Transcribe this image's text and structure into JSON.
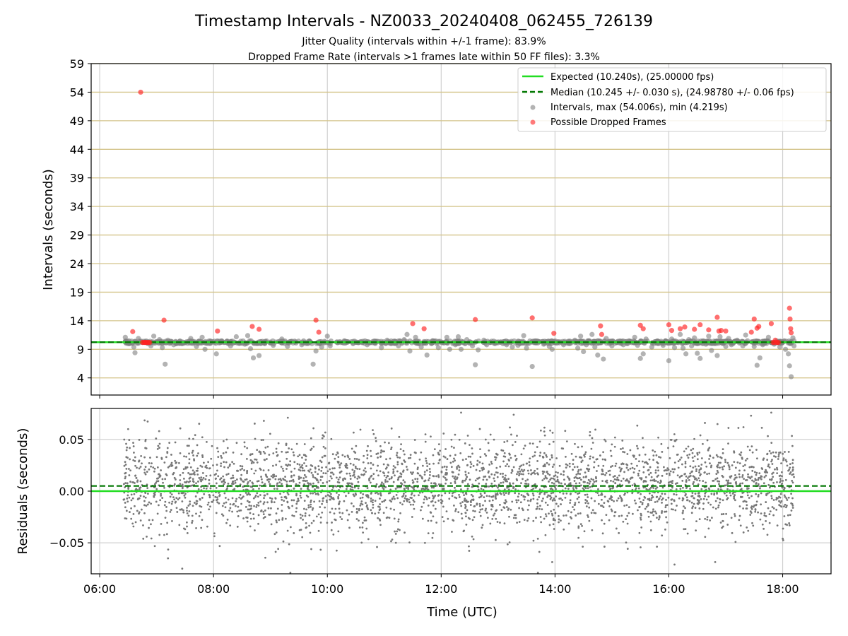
{
  "chart_data": [
    {
      "type": "scatter",
      "title": "Timestamp Intervals - NZ0033_20240408_062455_726139",
      "subtitle_lines": [
        "Jitter Quality (intervals within +/-1 frame): 83.9%",
        "Dropped Frame Rate (intervals >1 frames late within 50 FF files): 3.3%"
      ],
      "xlabel": "",
      "ylabel": "Intervals (seconds)",
      "xlim": [
        5.85,
        18.85
      ],
      "ylim": [
        1.0,
        59.0
      ],
      "yticks": [
        4,
        9,
        14,
        19,
        24,
        29,
        34,
        39,
        44,
        49,
        54,
        59
      ],
      "ytick_labels": [
        "4",
        "9",
        "14",
        "19",
        "24",
        "29",
        "34",
        "39",
        "44",
        "49",
        "54",
        "59"
      ],
      "x_gridlines": [
        6,
        8,
        10,
        12,
        14,
        16,
        18
      ],
      "grid": true,
      "legend_position": "upper-right",
      "lines": [
        {
          "name": "Expected (10.240s), (25.00000 fps)",
          "value": 10.24,
          "color": "#22dd22",
          "style": "solid"
        },
        {
          "name": "Median (10.245 +/- 0.030 s), (24.98780 +/- 0.06 fps)",
          "value": 10.245,
          "color": "#007700",
          "style": "dashed"
        }
      ],
      "series": [
        {
          "name": "Intervals, max (54.006s), min (4.219s)",
          "color": "#808080",
          "points": [
            [
              6.45,
              11.1
            ],
            [
              6.52,
              10.0
            ],
            [
              6.6,
              9.4
            ],
            [
              6.62,
              8.4
            ],
            [
              6.68,
              10.9
            ],
            [
              6.75,
              10.2
            ],
            [
              6.9,
              9.6
            ],
            [
              6.95,
              11.3
            ],
            [
              7.0,
              10.3
            ],
            [
              7.05,
              10.7
            ],
            [
              7.1,
              9.3
            ],
            [
              7.15,
              6.4
            ],
            [
              7.2,
              10.6
            ],
            [
              7.3,
              9.8
            ],
            [
              7.45,
              10.3
            ],
            [
              7.6,
              10.9
            ],
            [
              7.7,
              9.5
            ],
            [
              7.8,
              11.1
            ],
            [
              7.85,
              9.0
            ],
            [
              7.95,
              10.4
            ],
            [
              8.05,
              8.2
            ],
            [
              8.15,
              10.3
            ],
            [
              8.3,
              9.6
            ],
            [
              8.4,
              11.2
            ],
            [
              8.55,
              9.9
            ],
            [
              8.6,
              11.4
            ],
            [
              8.65,
              9.1
            ],
            [
              8.7,
              7.5
            ],
            [
              8.75,
              10.1
            ],
            [
              8.8,
              7.9
            ],
            [
              8.9,
              10.0
            ],
            [
              9.05,
              9.7
            ],
            [
              9.2,
              10.8
            ],
            [
              9.3,
              9.5
            ],
            [
              9.45,
              10.1
            ],
            [
              9.55,
              9.8
            ],
            [
              9.75,
              6.4
            ],
            [
              9.8,
              8.7
            ],
            [
              9.9,
              9.4
            ],
            [
              9.95,
              10.4
            ],
            [
              10.0,
              11.3
            ],
            [
              10.05,
              9.6
            ],
            [
              10.2,
              10.3
            ],
            [
              10.3,
              10.5
            ],
            [
              10.45,
              10.0
            ],
            [
              10.55,
              10.2
            ],
            [
              10.7,
              9.8
            ],
            [
              10.85,
              10.2
            ],
            [
              10.95,
              9.3
            ],
            [
              11.05,
              10.6
            ],
            [
              11.15,
              10.1
            ],
            [
              11.25,
              9.6
            ],
            [
              11.35,
              10.7
            ],
            [
              11.4,
              11.6
            ],
            [
              11.45,
              8.7
            ],
            [
              11.55,
              11.1
            ],
            [
              11.6,
              10.0
            ],
            [
              11.65,
              9.4
            ],
            [
              11.75,
              8.0
            ],
            [
              11.85,
              10.5
            ],
            [
              11.95,
              9.3
            ],
            [
              12.05,
              10.1
            ],
            [
              12.1,
              11.1
            ],
            [
              12.15,
              9.0
            ],
            [
              12.25,
              9.8
            ],
            [
              12.3,
              11.2
            ],
            [
              12.35,
              9.0
            ],
            [
              12.45,
              10.7
            ],
            [
              12.55,
              9.6
            ],
            [
              12.65,
              8.9
            ],
            [
              12.6,
              6.3
            ],
            [
              12.75,
              10.6
            ],
            [
              12.8,
              9.8
            ],
            [
              12.95,
              10.0
            ],
            [
              13.05,
              10.3
            ],
            [
              13.15,
              9.8
            ],
            [
              13.25,
              9.4
            ],
            [
              13.35,
              9.7
            ],
            [
              13.45,
              11.4
            ],
            [
              13.5,
              9.2
            ],
            [
              13.55,
              10.1
            ],
            [
              13.6,
              6.0
            ],
            [
              13.7,
              10.4
            ],
            [
              13.8,
              9.9
            ],
            [
              13.9,
              9.5
            ],
            [
              13.95,
              9.0
            ],
            [
              14.05,
              10.3
            ],
            [
              14.15,
              9.8
            ],
            [
              14.25,
              10.0
            ],
            [
              14.35,
              10.6
            ],
            [
              14.4,
              9.2
            ],
            [
              14.45,
              11.3
            ],
            [
              14.5,
              8.6
            ],
            [
              14.55,
              9.8
            ],
            [
              14.6,
              10.5
            ],
            [
              14.65,
              11.6
            ],
            [
              14.7,
              9.4
            ],
            [
              14.75,
              8.0
            ],
            [
              14.8,
              10.2
            ],
            [
              14.85,
              7.3
            ],
            [
              14.9,
              10.9
            ],
            [
              15.0,
              9.6
            ],
            [
              15.1,
              10.3
            ],
            [
              15.2,
              9.8
            ],
            [
              15.3,
              10.5
            ],
            [
              15.4,
              11.1
            ],
            [
              15.45,
              9.7
            ],
            [
              15.5,
              7.4
            ],
            [
              15.55,
              8.2
            ],
            [
              15.6,
              10.8
            ],
            [
              15.7,
              9.4
            ],
            [
              15.8,
              10.1
            ],
            [
              15.9,
              9.7
            ],
            [
              16.0,
              7.0
            ],
            [
              16.05,
              10.8
            ],
            [
              16.1,
              9.3
            ],
            [
              16.15,
              10.3
            ],
            [
              16.2,
              11.6
            ],
            [
              16.25,
              9.2
            ],
            [
              16.3,
              8.2
            ],
            [
              16.35,
              10.7
            ],
            [
              16.4,
              9.6
            ],
            [
              16.45,
              11.0
            ],
            [
              16.5,
              8.3
            ],
            [
              16.55,
              7.4
            ],
            [
              16.6,
              10.5
            ],
            [
              16.65,
              9.9
            ],
            [
              16.7,
              11.3
            ],
            [
              16.75,
              8.8
            ],
            [
              16.8,
              10.0
            ],
            [
              16.85,
              7.9
            ],
            [
              16.9,
              11.2
            ],
            [
              16.95,
              10.4
            ],
            [
              17.0,
              9.5
            ],
            [
              17.05,
              10.9
            ],
            [
              17.1,
              9.8
            ],
            [
              17.2,
              10.6
            ],
            [
              17.3,
              9.6
            ],
            [
              17.35,
              11.5
            ],
            [
              17.45,
              10.3
            ],
            [
              17.5,
              9.5
            ],
            [
              17.55,
              6.2
            ],
            [
              17.6,
              7.5
            ],
            [
              17.65,
              9.8
            ],
            [
              17.7,
              10.4
            ],
            [
              17.75,
              11.1
            ],
            [
              17.85,
              9.9
            ],
            [
              17.95,
              9.4
            ],
            [
              18.0,
              10.3
            ],
            [
              18.05,
              9.0
            ],
            [
              18.1,
              8.2
            ],
            [
              18.12,
              6.1
            ],
            [
              18.15,
              4.2
            ],
            [
              18.18,
              11.0
            ],
            [
              18.2,
              9.6
            ]
          ]
        },
        {
          "name": "Possible Dropped Frames",
          "color": "#ff2222",
          "points": [
            [
              6.58,
              12.1
            ],
            [
              6.72,
              54.0
            ],
            [
              6.75,
              10.2
            ],
            [
              6.77,
              10.2
            ],
            [
              6.79,
              10.2
            ],
            [
              6.8,
              10.2
            ],
            [
              6.82,
              10.2
            ],
            [
              6.84,
              10.2
            ],
            [
              6.86,
              10.2
            ],
            [
              6.88,
              10.2
            ],
            [
              7.13,
              14.1
            ],
            [
              8.07,
              12.2
            ],
            [
              8.68,
              13.0
            ],
            [
              8.8,
              12.5
            ],
            [
              9.8,
              14.1
            ],
            [
              9.85,
              12.0
            ],
            [
              11.5,
              13.5
            ],
            [
              11.7,
              12.6
            ],
            [
              12.6,
              14.2
            ],
            [
              13.6,
              14.5
            ],
            [
              13.98,
              11.8
            ],
            [
              14.8,
              13.1
            ],
            [
              14.82,
              11.6
            ],
            [
              15.5,
              13.2
            ],
            [
              15.55,
              12.6
            ],
            [
              16.0,
              13.3
            ],
            [
              16.05,
              12.3
            ],
            [
              16.2,
              12.6
            ],
            [
              16.28,
              12.9
            ],
            [
              16.45,
              12.5
            ],
            [
              16.55,
              13.3
            ],
            [
              16.7,
              12.4
            ],
            [
              16.85,
              14.6
            ],
            [
              16.88,
              12.2
            ],
            [
              16.92,
              12.3
            ],
            [
              17.0,
              12.2
            ],
            [
              17.45,
              12.0
            ],
            [
              17.5,
              14.3
            ],
            [
              17.55,
              12.7
            ],
            [
              17.58,
              13.0
            ],
            [
              17.8,
              13.5
            ],
            [
              17.83,
              10.2
            ],
            [
              17.85,
              10.2
            ],
            [
              17.87,
              10.6
            ],
            [
              17.89,
              10.2
            ],
            [
              17.91,
              10.2
            ],
            [
              17.93,
              10.2
            ],
            [
              18.12,
              16.2
            ],
            [
              18.13,
              14.3
            ],
            [
              18.14,
              12.6
            ],
            [
              18.15,
              11.9
            ]
          ]
        }
      ]
    },
    {
      "type": "scatter",
      "xlabel": "Time (UTC)",
      "ylabel": "Residuals (seconds)",
      "xlim": [
        5.85,
        18.85
      ],
      "ylim": [
        -0.08,
        0.08
      ],
      "yticks": [
        -0.05,
        0.0,
        0.05
      ],
      "ytick_labels": [
        "−0.05",
        "0.00",
        "0.05"
      ],
      "xticks": [
        6,
        8,
        10,
        12,
        14,
        16,
        18
      ],
      "xtick_labels": [
        "06:00",
        "08:00",
        "10:00",
        "12:00",
        "14:00",
        "16:00",
        "18:00"
      ],
      "grid": true,
      "lines": [
        {
          "value": 0.0,
          "color": "#22dd22",
          "style": "solid"
        },
        {
          "value": 0.005,
          "color": "#007700",
          "style": "dashed"
        }
      ],
      "series": [
        {
          "color": "#777777",
          "x_range": [
            6.42,
            18.2
          ],
          "count": 3300,
          "sigma": 0.022,
          "mean": 0.005,
          "sample_points": [
            [
              6.5,
              0.06
            ],
            [
              7.2,
              -0.065
            ],
            [
              7.45,
              -0.075
            ],
            [
              9.35,
              -0.079
            ],
            [
              12.35,
              0.076
            ],
            [
              16.1,
              -0.071
            ],
            [
              17.8,
              0.076
            ],
            [
              13.7,
              -0.079
            ]
          ]
        }
      ]
    }
  ]
}
